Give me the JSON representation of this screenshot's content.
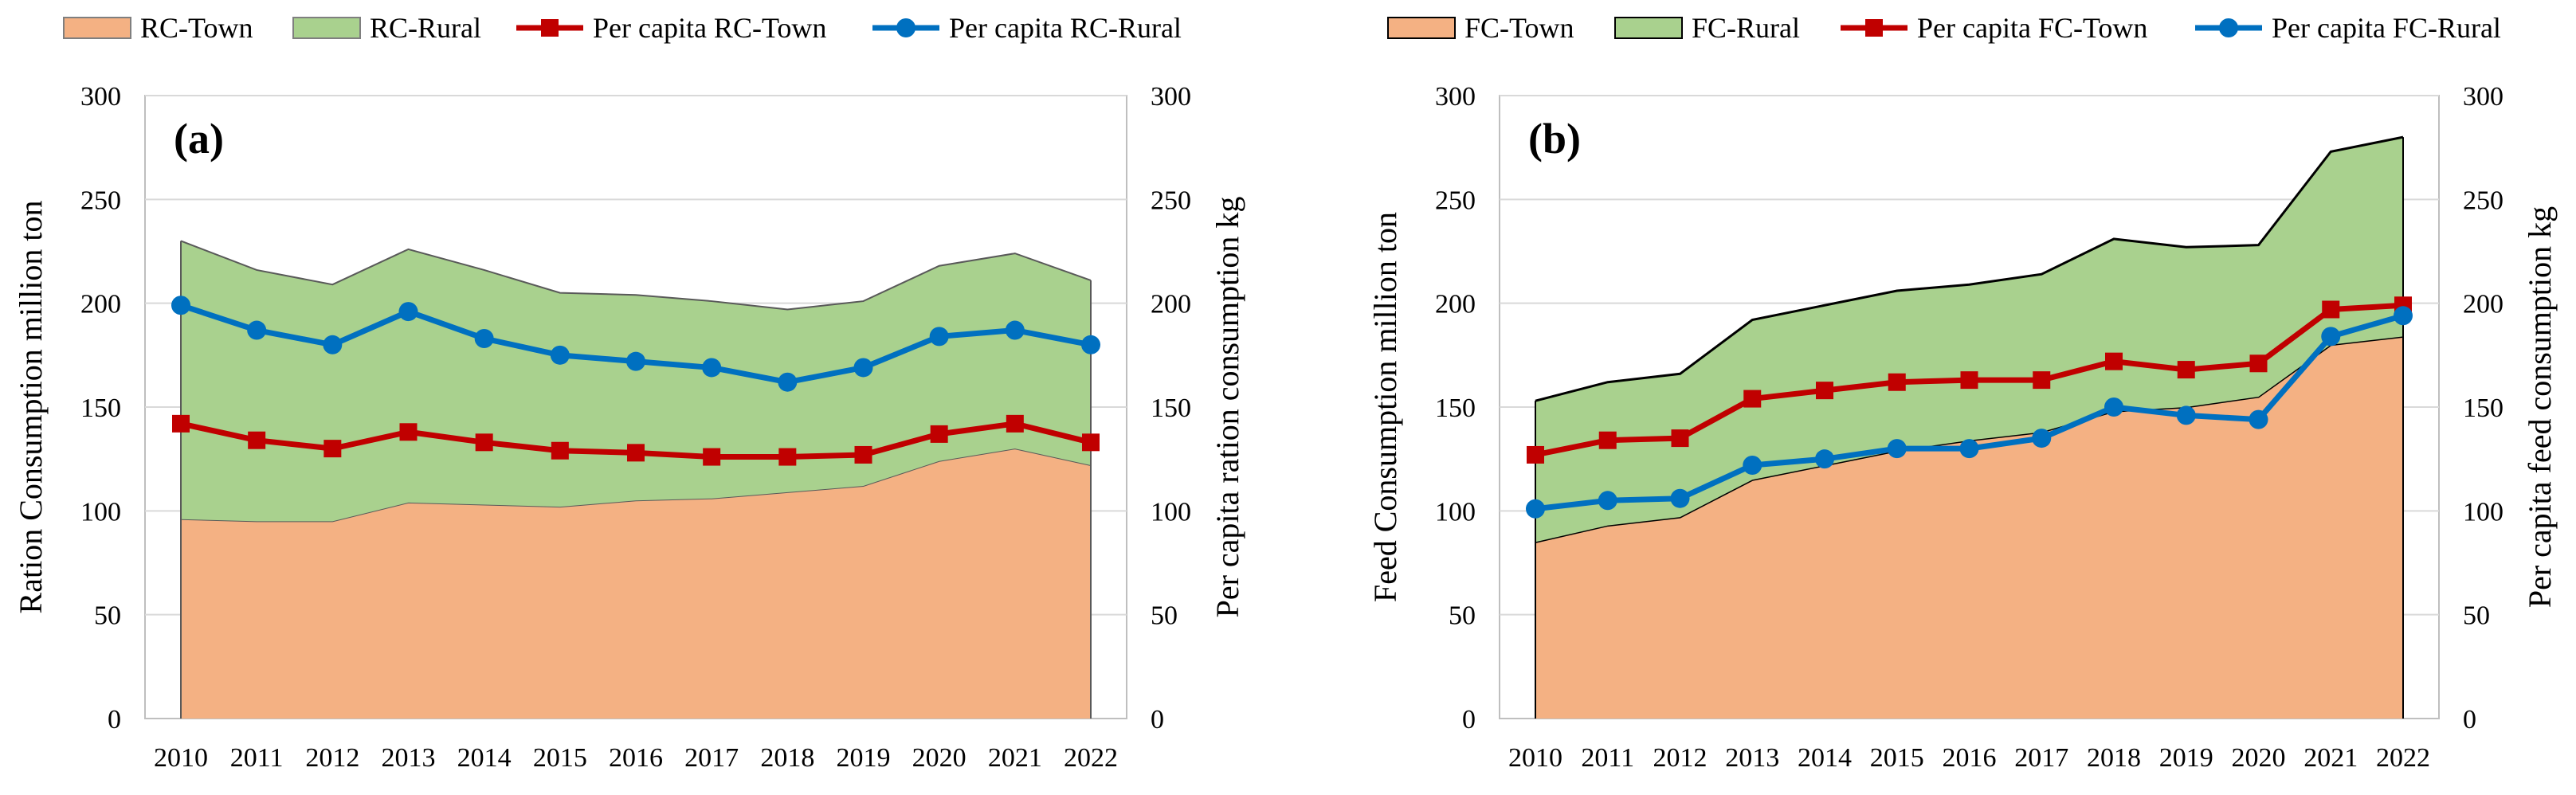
{
  "chart_data": [
    {
      "type": "area",
      "panel_label": "(a)",
      "categories": [
        "2010",
        "2011",
        "2012",
        "2013",
        "2014",
        "2015",
        "2016",
        "2017",
        "2018",
        "2019",
        "2020",
        "2021",
        "2022"
      ],
      "ylabel": "Ration Consumption million ton",
      "y2label": "Per capita ration  consumption kg",
      "ylim": [
        0,
        300
      ],
      "y2lim": [
        0,
        300
      ],
      "yticks": [
        "0",
        "50",
        "100",
        "150",
        "200",
        "250",
        "300"
      ],
      "grid": true,
      "legend_position": "top",
      "stacked_areas": [
        {
          "name": "RC-Town",
          "color": "#F4B183",
          "values": [
            96,
            95,
            95,
            104,
            103,
            102,
            105,
            106,
            109,
            112,
            124,
            130,
            122
          ]
        },
        {
          "name": "RC-Rural",
          "color": "#A9D18E",
          "values": [
            134,
            121,
            114,
            122,
            113,
            103,
            99,
            95,
            88,
            89,
            94,
            94,
            89
          ]
        }
      ],
      "lines": [
        {
          "name": "Per capita RC-Town",
          "color": "#C00000",
          "marker": "square",
          "axis": "right",
          "values": [
            142,
            134,
            130,
            138,
            133,
            129,
            128,
            126,
            126,
            127,
            137,
            142,
            133
          ]
        },
        {
          "name": "Per capita RC-Rural",
          "color": "#0070C0",
          "marker": "circle",
          "axis": "right",
          "values": [
            199,
            187,
            180,
            196,
            183,
            175,
            172,
            169,
            162,
            169,
            184,
            187,
            180
          ]
        }
      ]
    },
    {
      "type": "area",
      "panel_label": "(b)",
      "categories": [
        "2010",
        "2011",
        "2012",
        "2013",
        "2014",
        "2015",
        "2016",
        "2017",
        "2018",
        "2019",
        "2020",
        "2021",
        "2022"
      ],
      "ylabel": "Feed Consumption million ton",
      "y2label": "Per capita feed  consumption kg",
      "ylim": [
        0,
        300
      ],
      "y2lim": [
        0,
        300
      ],
      "yticks": [
        "0",
        "50",
        "100",
        "150",
        "200",
        "250",
        "300"
      ],
      "grid": true,
      "legend_position": "top",
      "stacked_areas": [
        {
          "name": "FC-Town",
          "color": "#F4B183",
          "values": [
            85,
            93,
            97,
            115,
            122,
            129,
            134,
            138,
            148,
            150,
            155,
            180,
            184
          ]
        },
        {
          "name": "FC-Rural",
          "color": "#A9D18E",
          "values": [
            68,
            69,
            69,
            77,
            77,
            77,
            75,
            76,
            83,
            77,
            73,
            93,
            96
          ]
        }
      ],
      "lines": [
        {
          "name": "Per capita FC-Town",
          "color": "#C00000",
          "marker": "square",
          "axis": "right",
          "values": [
            127,
            134,
            135,
            154,
            158,
            162,
            163,
            163,
            172,
            168,
            171,
            197,
            199
          ]
        },
        {
          "name": "Per capita FC-Rural",
          "color": "#0070C0",
          "marker": "circle",
          "axis": "right",
          "values": [
            101,
            105,
            106,
            122,
            125,
            130,
            130,
            135,
            150,
            146,
            144,
            184,
            194
          ]
        }
      ]
    }
  ]
}
